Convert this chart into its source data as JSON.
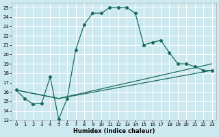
{
  "xlabel": "Humidex (Indice chaleur)",
  "ylabel": "",
  "bg_color": "#cce9f0",
  "grid_color": "#ffffff",
  "line_color": "#1a6b5a",
  "xlim": [
    -0.5,
    23.5
  ],
  "ylim": [
    13,
    25.5
  ],
  "xticks": [
    0,
    1,
    2,
    3,
    4,
    5,
    6,
    7,
    8,
    9,
    10,
    11,
    12,
    13,
    14,
    15,
    16,
    17,
    18,
    19,
    20,
    21,
    22,
    23
  ],
  "yticks": [
    13,
    14,
    15,
    16,
    17,
    18,
    19,
    20,
    21,
    22,
    23,
    24,
    25
  ],
  "line1_x": [
    0,
    1,
    2,
    3,
    4,
    5,
    6,
    7,
    8,
    9,
    10,
    11,
    12,
    13,
    14,
    15,
    16,
    17,
    18,
    19,
    20,
    21,
    22,
    23
  ],
  "line1_y": [
    16.2,
    15.3,
    14.7,
    14.8,
    17.6,
    13.1,
    15.3,
    20.5,
    23.2,
    24.4,
    24.4,
    25.0,
    25.0,
    25.0,
    24.4,
    21.0,
    21.3,
    21.5,
    20.2,
    19.0,
    19.0,
    18.7,
    18.3,
    18.3
  ],
  "line2_x": [
    0,
    5,
    23
  ],
  "line2_y": [
    16.2,
    15.3,
    19.0
  ],
  "line3_x": [
    0,
    5,
    23
  ],
  "line3_y": [
    16.2,
    15.3,
    18.3
  ]
}
